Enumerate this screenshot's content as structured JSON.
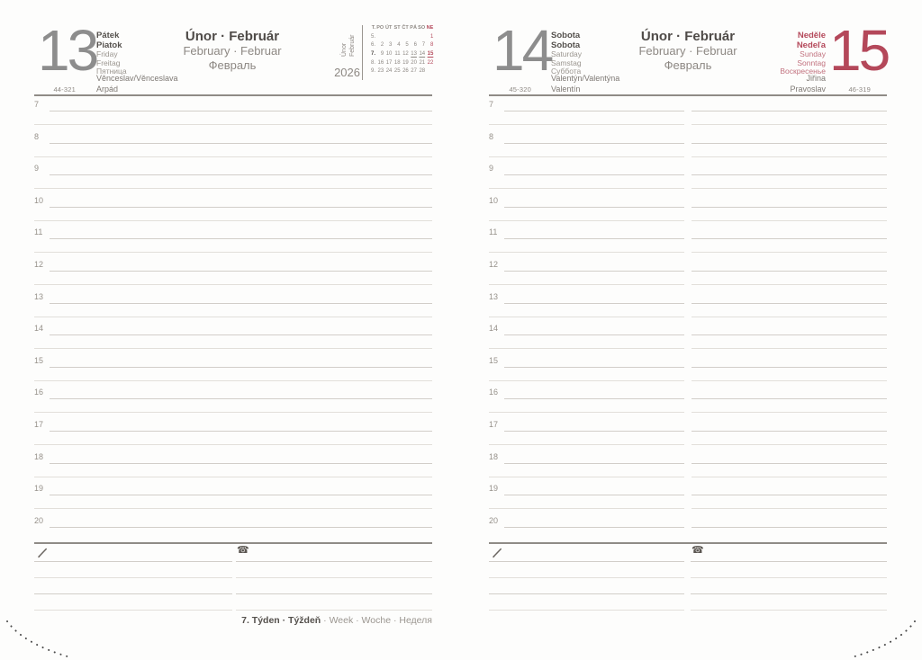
{
  "year": "2026",
  "months_header": {
    "cz_sk": "Únor · Február",
    "en_de": "February · Februar",
    "ru": "Февраль"
  },
  "footer": {
    "week_bold": "7. Týden · Týždeň",
    "week_rest": " · Week · Woche · Неделя"
  },
  "hours": [
    "7",
    "8",
    "9",
    "10",
    "11",
    "12",
    "13",
    "14",
    "15",
    "16",
    "17",
    "18",
    "19",
    "20"
  ],
  "left_page": {
    "day_number": "13",
    "ordinal": "44-321",
    "names": [
      "Pátek",
      "Piatok",
      "Friday",
      "Freitag",
      "Пятница"
    ],
    "name_days": [
      "Věnceslav/Věnceslava",
      "Arpád"
    ],
    "mini_calendar": {
      "side_month": [
        "Únor",
        "Február"
      ],
      "year": "2026",
      "week_header": "T.",
      "day_headers": [
        "PO",
        "ÚT",
        "ST",
        "ČT",
        "PÁ",
        "SO",
        "NE"
      ],
      "weeks": [
        {
          "num": "5.",
          "days": [
            "",
            "",
            "",
            "",
            "",
            "",
            "1"
          ]
        },
        {
          "num": "6.",
          "days": [
            "2",
            "3",
            "4",
            "5",
            "6",
            "7",
            "8"
          ]
        },
        {
          "num": "7.",
          "days": [
            "9",
            "10",
            "11",
            "12",
            "13",
            "14",
            "15"
          ]
        },
        {
          "num": "8.",
          "days": [
            "16",
            "17",
            "18",
            "19",
            "20",
            "21",
            "22"
          ]
        },
        {
          "num": "9.",
          "days": [
            "23",
            "24",
            "25",
            "26",
            "27",
            "28",
            ""
          ]
        }
      ],
      "underlined_days": [
        "13",
        "14",
        "15"
      ],
      "current_week": "7."
    }
  },
  "right_page": {
    "saturday": {
      "day_number": "14",
      "ordinal": "45-320",
      "names": [
        "Sobota",
        "Sobota",
        "Saturday",
        "Samstag",
        "Суббота"
      ],
      "name_days": [
        "Valentýn/Valentýna",
        "Valentín"
      ]
    },
    "sunday": {
      "day_number": "15",
      "ordinal": "46-319",
      "names": [
        "Neděle",
        "Nedeľa",
        "Sunday",
        "Sonntag",
        "Воскресенье"
      ],
      "name_days": [
        "Jiřina",
        "Pravoslav"
      ]
    }
  },
  "colors": {
    "red": "#b4485a",
    "dark_text": "#55514d",
    "light_text": "#9b9690",
    "line_light": "#d2cec9",
    "rule_dark": "#8f8b86"
  },
  "icons": {
    "pencil": "pencil-icon",
    "phone_glyph": "☎"
  }
}
